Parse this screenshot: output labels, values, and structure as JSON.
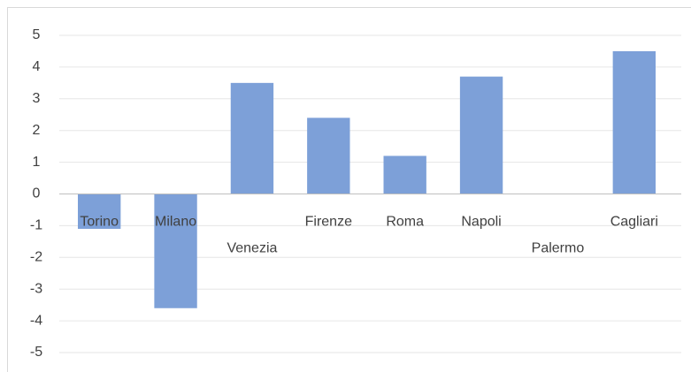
{
  "chart_data": {
    "type": "bar",
    "categories": [
      "Torino",
      "Milano",
      "Venezia",
      "Firenze",
      "Roma",
      "Napoli",
      "Palermo",
      "Cagliari"
    ],
    "values": [
      -1.1,
      -3.6,
      3.5,
      2.4,
      1.2,
      3.7,
      0,
      4.5
    ],
    "color": "#7da0d8",
    "ylim": [
      -5,
      5
    ],
    "yticks": [
      -5,
      -4,
      -3,
      -2,
      -1,
      0,
      1,
      2,
      3,
      4,
      5
    ],
    "grid": true
  }
}
